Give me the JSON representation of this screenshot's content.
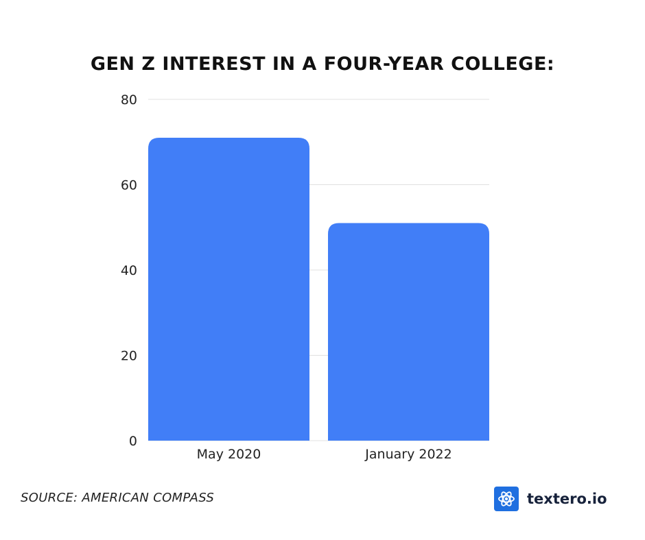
{
  "chart_data": {
    "type": "bar",
    "title": "GEN Z INTEREST IN A FOUR-YEAR COLLEGE:",
    "categories": [
      "May 2020",
      "January 2022"
    ],
    "values": [
      71,
      51
    ],
    "xlabel": "",
    "ylabel": "",
    "ylim": [
      0,
      80
    ],
    "yticks": [
      0,
      20,
      40,
      60,
      80
    ],
    "ytick_labels": [
      "0",
      "20",
      "40",
      "60",
      "80"
    ],
    "grid": true,
    "legend": "none",
    "bar_color": "#417ef7",
    "grid_color": "#e0e0e0"
  },
  "source": "SOURCE: AMERICAN COMPASS",
  "brand": {
    "name": "textero.io",
    "icon": "atom-icon",
    "icon_color": "#1f6fe0"
  }
}
